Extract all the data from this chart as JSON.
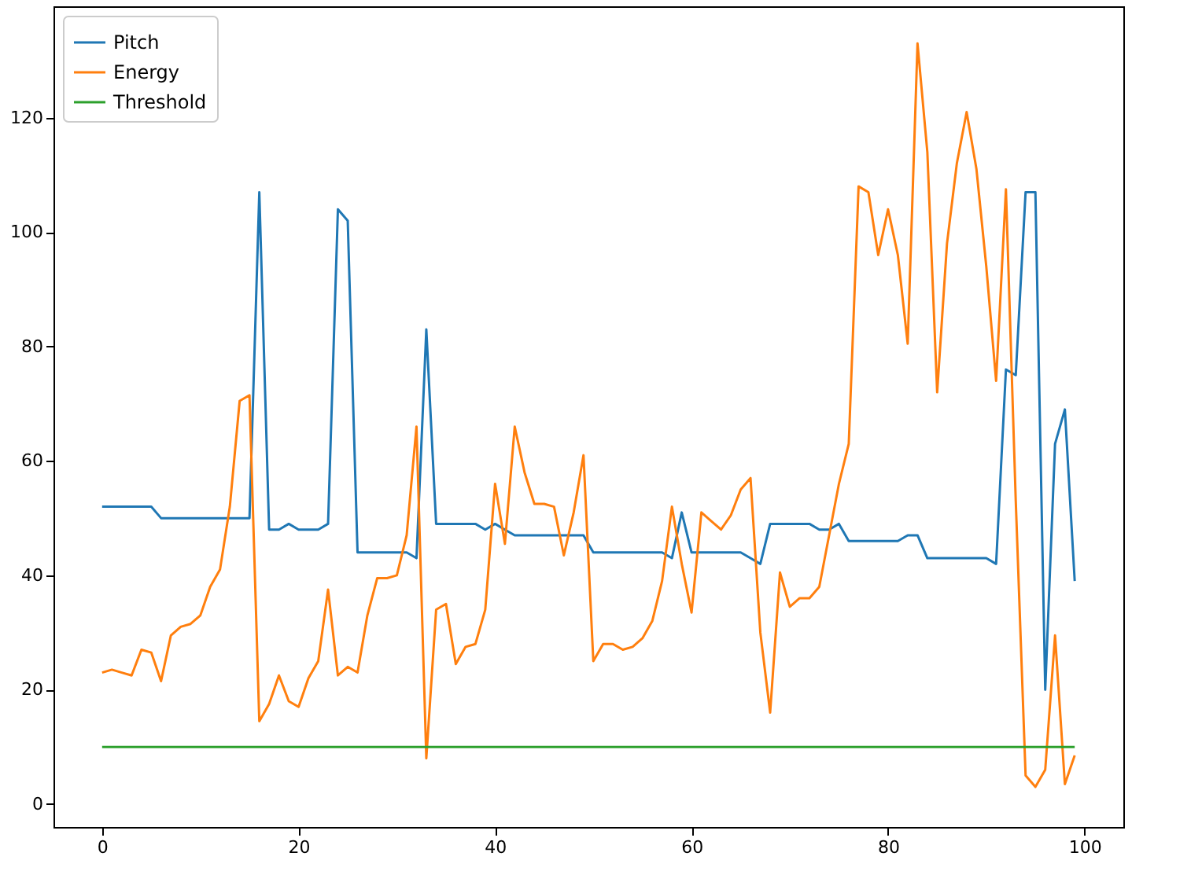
{
  "chart_data": {
    "type": "line",
    "legend": "top left",
    "grid": false,
    "x": [
      0,
      1,
      2,
      3,
      4,
      5,
      6,
      7,
      8,
      9,
      10,
      11,
      12,
      13,
      14,
      15,
      16,
      17,
      18,
      19,
      20,
      21,
      22,
      23,
      24,
      25,
      26,
      27,
      28,
      29,
      30,
      31,
      32,
      33,
      34,
      35,
      36,
      37,
      38,
      39,
      40,
      41,
      42,
      43,
      44,
      45,
      46,
      47,
      48,
      49,
      50,
      51,
      52,
      53,
      54,
      55,
      56,
      57,
      58,
      59,
      60,
      61,
      62,
      63,
      64,
      65,
      66,
      67,
      68,
      69,
      70,
      71,
      72,
      73,
      74,
      75,
      76,
      77,
      78,
      79,
      80,
      81,
      82,
      83,
      84,
      85,
      86,
      87,
      88,
      89,
      90,
      91,
      92,
      93,
      94,
      95,
      96,
      97,
      98,
      99
    ],
    "xlim": [
      -4.95,
      103.95
    ],
    "xticks": [
      0,
      20,
      40,
      60,
      80,
      100
    ],
    "ylim": [
      -4,
      139.5
    ],
    "yticks": [
      0,
      20,
      40,
      60,
      80,
      100,
      120
    ],
    "series": [
      {
        "name": "Pitch",
        "color": "#1f77b4",
        "values": [
          52,
          52,
          52,
          52,
          52,
          52,
          50,
          50,
          50,
          50,
          50,
          50,
          50,
          50,
          50,
          50,
          107,
          48,
          48,
          49,
          48,
          48,
          48,
          49,
          104,
          102,
          44,
          44,
          44,
          44,
          44,
          44,
          43,
          83,
          49,
          49,
          49,
          49,
          49,
          48,
          49,
          48,
          47,
          47,
          47,
          47,
          47,
          47,
          47,
          47,
          44,
          44,
          44,
          44,
          44,
          44,
          44,
          44,
          43,
          51,
          44,
          44,
          44,
          44,
          44,
          44,
          43,
          42,
          49,
          49,
          49,
          49,
          49,
          48,
          48,
          49,
          46,
          46,
          46,
          46,
          46,
          46,
          47,
          47,
          43,
          43,
          43,
          43,
          43,
          43,
          43,
          42,
          76,
          75,
          107,
          107,
          20,
          63,
          69,
          39
        ]
      },
      {
        "name": "Energy",
        "color": "#ff7f0e",
        "values": [
          23,
          23.5,
          23,
          22.5,
          27,
          26.5,
          21.5,
          29.5,
          31,
          31.5,
          33,
          38,
          41,
          52,
          70.5,
          71.5,
          14.5,
          17.5,
          22.5,
          18,
          17,
          22,
          25,
          37.5,
          22.5,
          24,
          23,
          33,
          39.5,
          39.5,
          40,
          47,
          66,
          8,
          34,
          35,
          24.5,
          27.5,
          28,
          34,
          56,
          45.5,
          66,
          58,
          52.5,
          52.5,
          52,
          43.5,
          51,
          61,
          25,
          28,
          28,
          27,
          27.5,
          29,
          32,
          39,
          52,
          42,
          33.5,
          51,
          49.5,
          48,
          50.5,
          55,
          57,
          30,
          16,
          40.5,
          34.5,
          36,
          36,
          38,
          47,
          56,
          63,
          108,
          107,
          96,
          104,
          96,
          80.5,
          133,
          114,
          72,
          98,
          112,
          121,
          111,
          94,
          74,
          107.5,
          53,
          5,
          3,
          6,
          29.5,
          3.5,
          8.5
        ]
      },
      {
        "name": "Threshold",
        "color": "#2ca02c",
        "values": [
          10,
          10,
          10,
          10,
          10,
          10,
          10,
          10,
          10,
          10,
          10,
          10,
          10,
          10,
          10,
          10,
          10,
          10,
          10,
          10,
          10,
          10,
          10,
          10,
          10,
          10,
          10,
          10,
          10,
          10,
          10,
          10,
          10,
          10,
          10,
          10,
          10,
          10,
          10,
          10,
          10,
          10,
          10,
          10,
          10,
          10,
          10,
          10,
          10,
          10,
          10,
          10,
          10,
          10,
          10,
          10,
          10,
          10,
          10,
          10,
          10,
          10,
          10,
          10,
          10,
          10,
          10,
          10,
          10,
          10,
          10,
          10,
          10,
          10,
          10,
          10,
          10,
          10,
          10,
          10,
          10,
          10,
          10,
          10,
          10,
          10,
          10,
          10,
          10,
          10,
          10,
          10,
          10,
          10,
          10,
          10,
          10,
          10,
          10,
          10
        ]
      }
    ]
  }
}
